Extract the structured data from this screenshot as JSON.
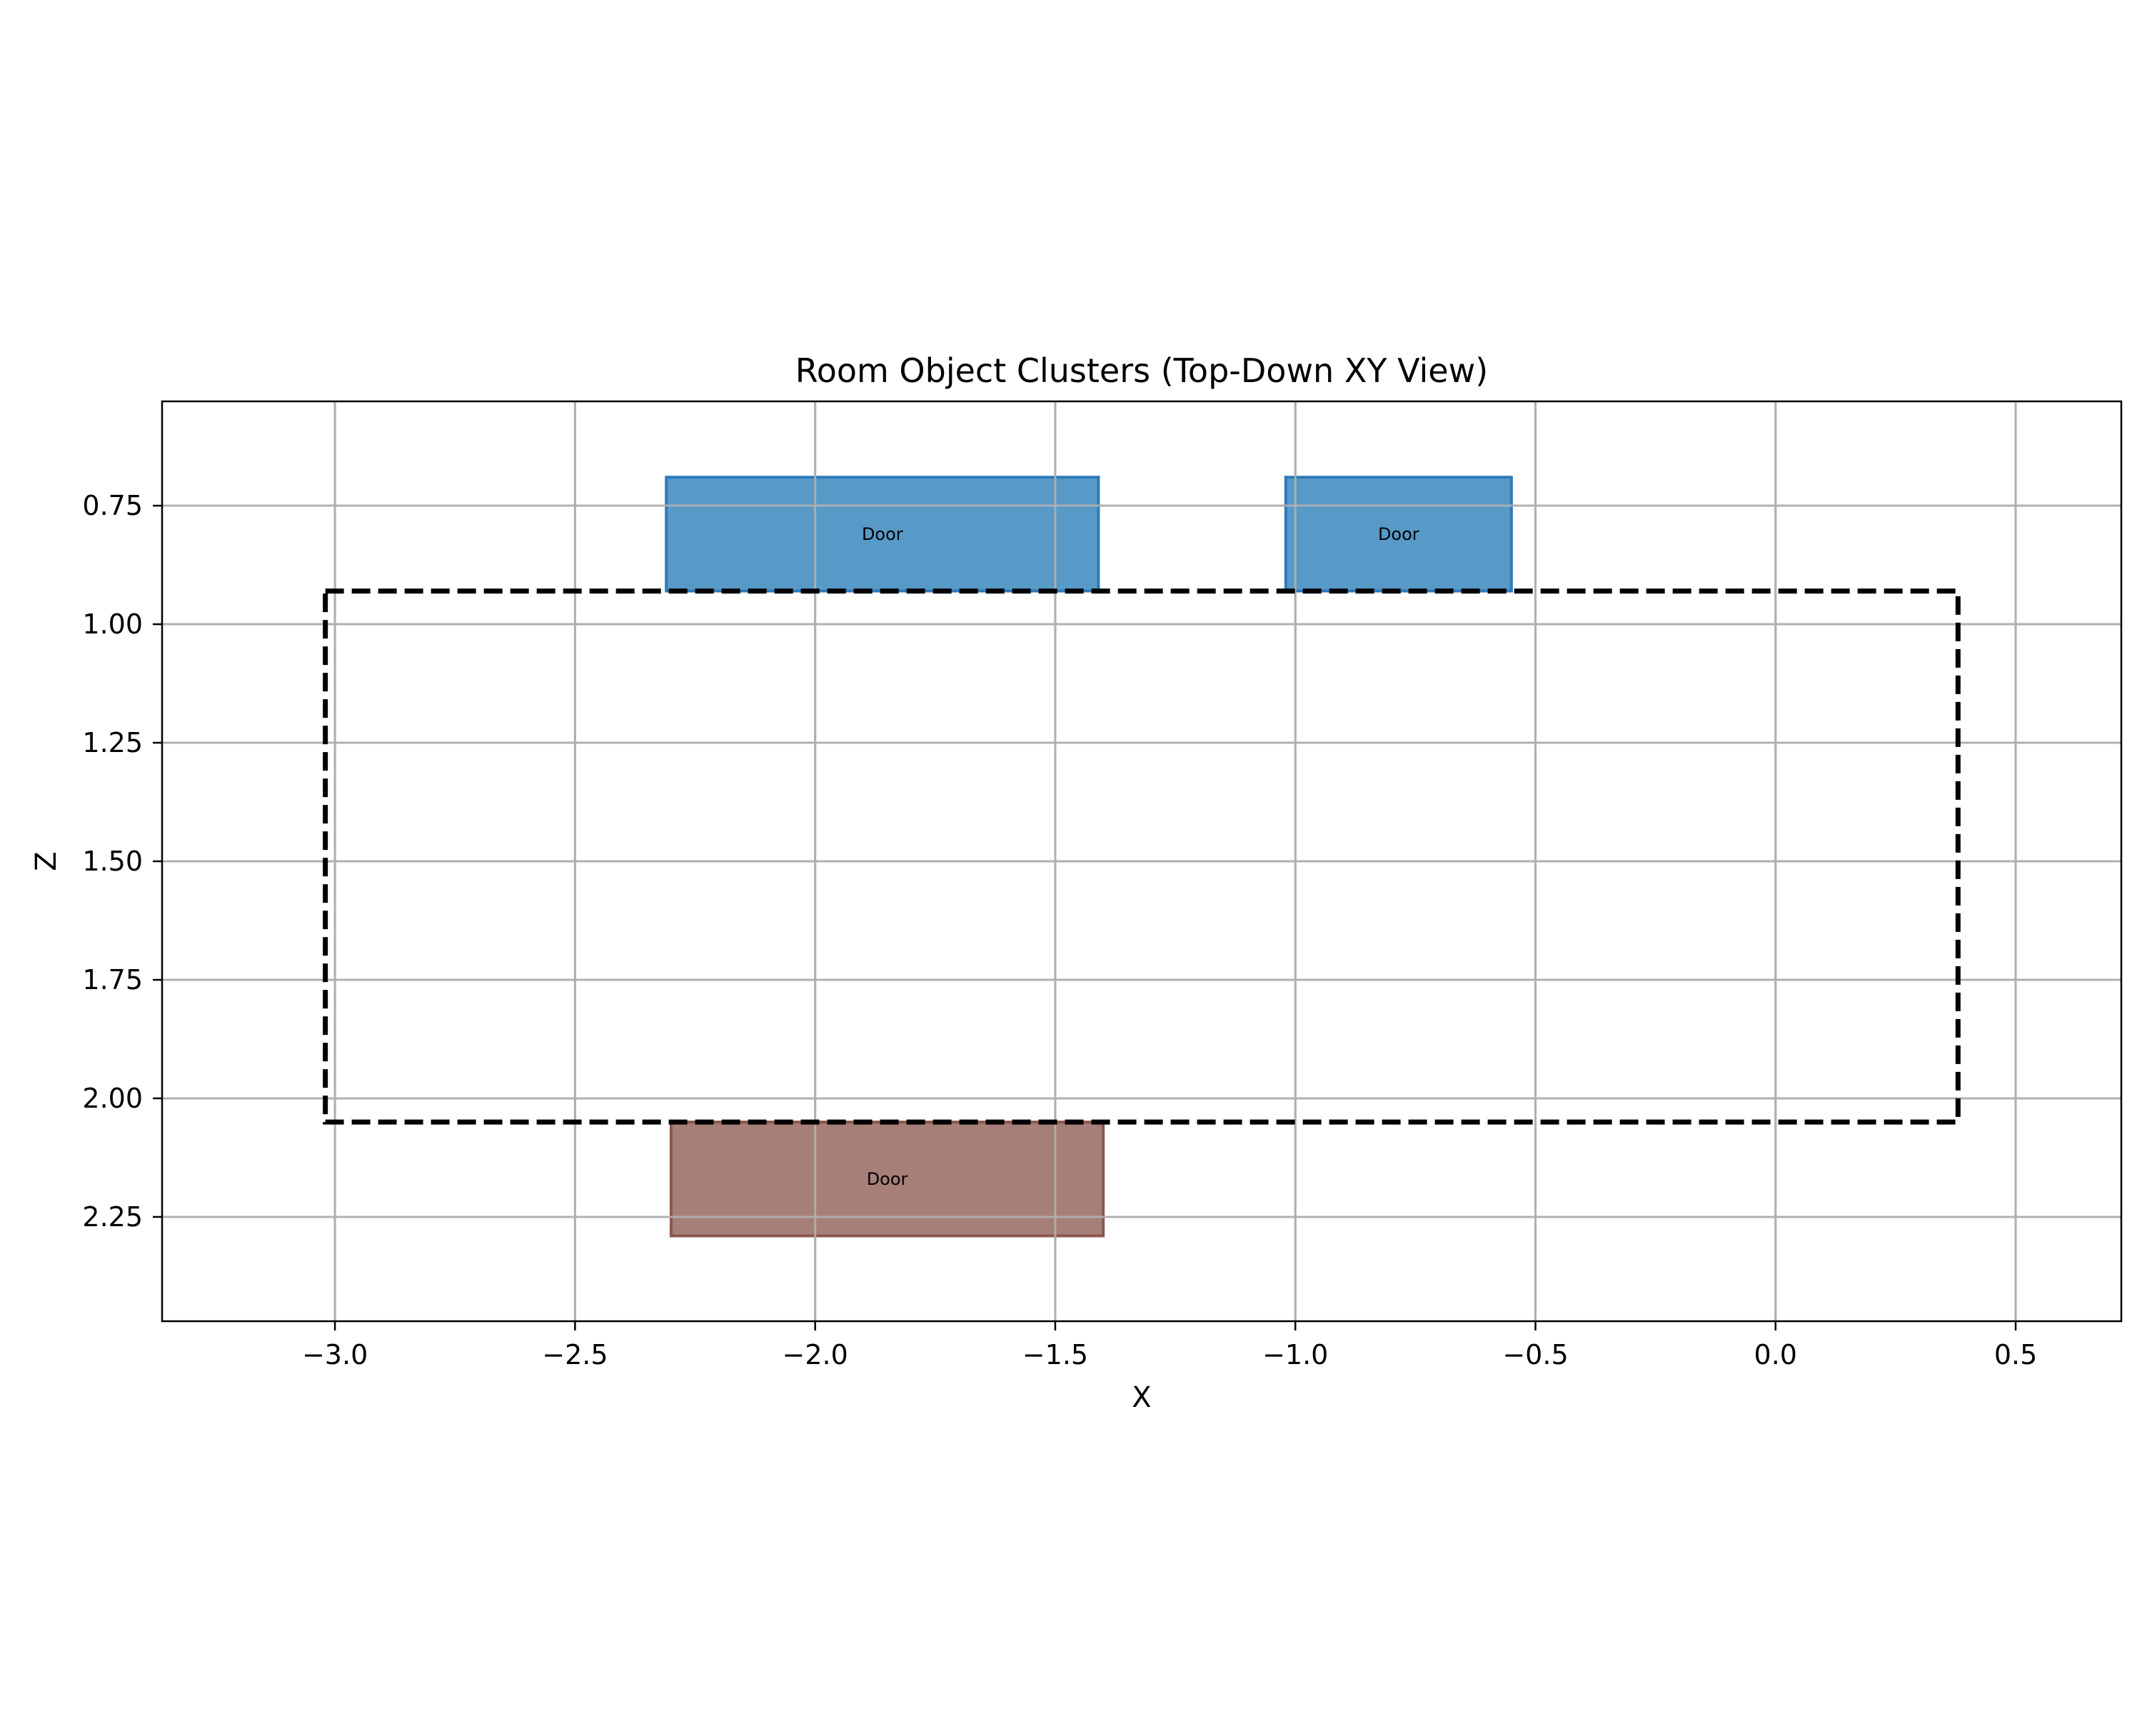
{
  "chart_data": {
    "type": "rectangles",
    "title": "Room Object Clusters (Top-Down XY View)",
    "xlabel": "X",
    "ylabel": "Z",
    "xlim": [
      -3.36,
      0.72
    ],
    "ylim": [
      2.47,
      0.53
    ],
    "y_inverted": true,
    "grid": true,
    "xticks": [
      -3.0,
      -2.5,
      -2.0,
      -1.5,
      -1.0,
      -0.5,
      0.0,
      0.5
    ],
    "xtick_labels": [
      "−3.0",
      "−2.5",
      "−2.0",
      "−1.5",
      "−1.0",
      "−0.5",
      "0.0",
      "0.5"
    ],
    "yticks": [
      0.75,
      1.0,
      1.25,
      1.5,
      1.75,
      2.0,
      2.25
    ],
    "ytick_labels": [
      "0.75",
      "1.00",
      "1.25",
      "1.50",
      "1.75",
      "2.00",
      "2.25"
    ],
    "room_boundary": {
      "x0": -3.02,
      "x1": 0.38,
      "z0": 0.93,
      "z1": 2.05,
      "color": "#000000",
      "style": "dashed"
    },
    "objects": [
      {
        "label": "Door",
        "x0": -2.31,
        "x1": -1.41,
        "z0": 0.69,
        "z1": 0.93,
        "fill": "#5799c7",
        "edge": "#2f7ab9"
      },
      {
        "label": "Door",
        "x0": -1.02,
        "x1": -0.55,
        "z0": 0.69,
        "z1": 0.93,
        "fill": "#5799c7",
        "edge": "#2f7ab9"
      },
      {
        "label": "Door",
        "x0": -2.3,
        "x1": -1.4,
        "z0": 2.05,
        "z1": 2.29,
        "fill": "#a67f78",
        "edge": "#8c564b"
      }
    ]
  }
}
